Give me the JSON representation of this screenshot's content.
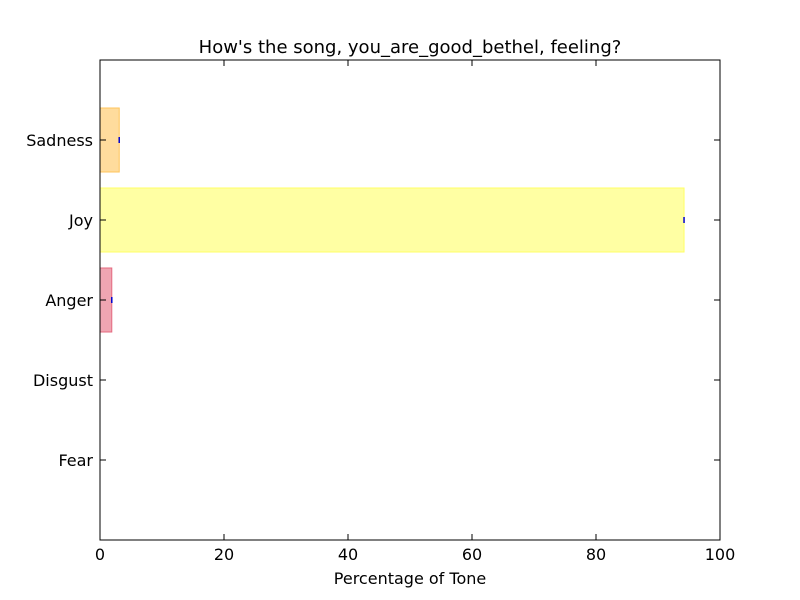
{
  "chart_data": {
    "type": "bar",
    "orientation": "horizontal",
    "title": "How's the song, you_are_good_bethel, feeling?",
    "xlabel": "Percentage of Tone",
    "ylabel": "",
    "xlim": [
      0,
      100
    ],
    "xticks": [
      0,
      20,
      40,
      60,
      80,
      100
    ],
    "categories": [
      "Fear",
      "Disgust",
      "Anger",
      "Joy",
      "Sadness"
    ],
    "values": [
      0,
      0,
      1.9,
      94.2,
      3.1
    ],
    "colors": [
      "#3a8f3a",
      "#7fcf7f",
      "#e4697f",
      "#ffff66",
      "#ffc55c"
    ],
    "error_marker_color": "#0000cc",
    "grid": false,
    "legend": "none"
  }
}
